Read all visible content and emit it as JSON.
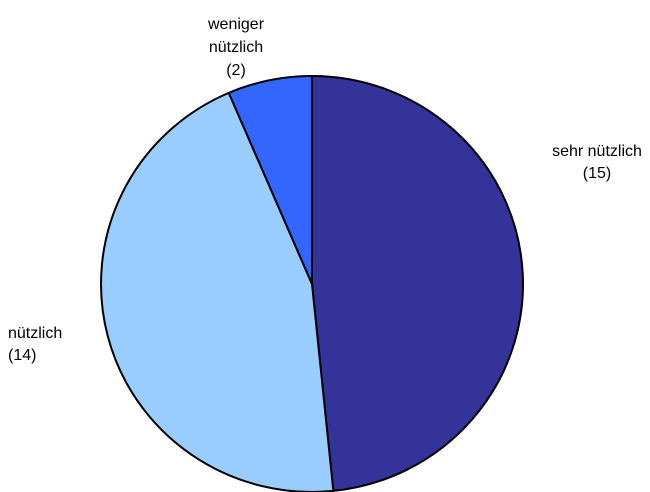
{
  "chart_data": {
    "type": "pie",
    "title": "",
    "start_angle_deg": 0,
    "direction": "clockwise",
    "slices": [
      {
        "name": "sehr nützlich",
        "value": 15,
        "label_lines": [
          "sehr nützlich",
          "(15)"
        ],
        "color": "#333399"
      },
      {
        "name": "nützlich",
        "value": 14,
        "label_lines": [
          "nützlich",
          "(14)"
        ],
        "color": "#99CCFF"
      },
      {
        "name": "weniger nützlich",
        "value": 2,
        "label_lines": [
          "weniger",
          "nützlich",
          "(2)"
        ],
        "color": "#3366FF"
      }
    ],
    "stroke_color": "#000000",
    "legend": "none",
    "grid": false
  }
}
